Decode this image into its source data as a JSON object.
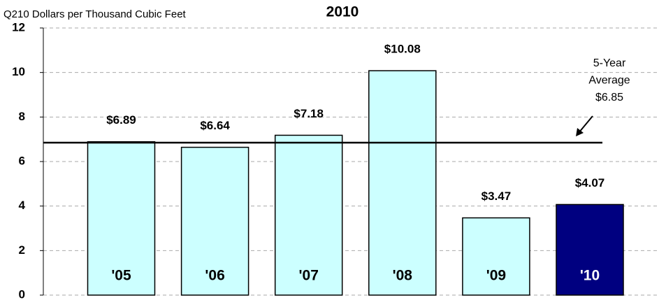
{
  "chart_data": {
    "type": "bar",
    "title": "2010",
    "y_label": "Q210 Dollars per Thousand Cubic Feet",
    "categories": [
      "'05",
      "'06",
      "'07",
      "'08",
      "'09",
      "'10"
    ],
    "values": [
      6.89,
      6.64,
      7.18,
      10.08,
      3.47,
      4.07
    ],
    "value_labels": [
      "$6.89",
      "$6.64",
      "$7.18",
      "$10.08",
      "$3.47",
      "$4.07"
    ],
    "colors": [
      "#ccffff",
      "#ccffff",
      "#ccffff",
      "#ccffff",
      "#ccffff",
      "#000080"
    ],
    "average": 6.85,
    "average_label": [
      "5-Year",
      "Average",
      "$6.85"
    ],
    "ylim": [
      0,
      12
    ],
    "yticks": [
      0,
      2,
      4,
      6,
      8,
      10,
      12
    ],
    "grid": true
  }
}
